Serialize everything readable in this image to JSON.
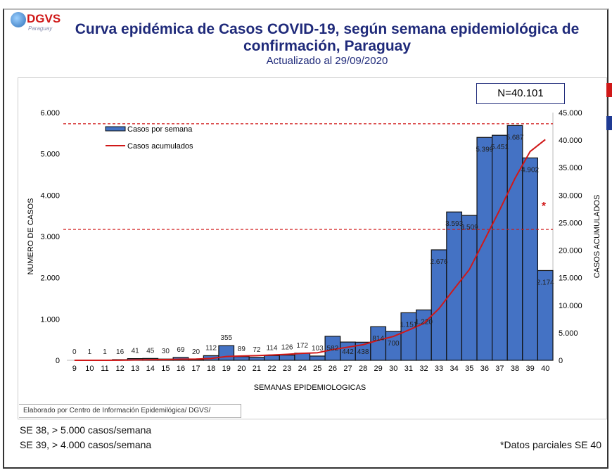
{
  "header": {
    "logo_text": "DGVS",
    "logo_subtext": "Paraguay",
    "title": "Curva epidémica de Casos COVID-19, según semana epidemiológica de confirmación, Paraguay",
    "subtitle": "Actualizado al 29/09/2020"
  },
  "total_box": "N=40.101",
  "credit": "Elaborado por Centro de Información Epidemilógica/ DGVS/",
  "notes": [
    "SE 38, > 5.000 casos/semana",
    "SE 39, > 4.000 casos/semana"
  ],
  "partial_note": "*Datos parciales SE 40",
  "chart_data": {
    "type": "bar",
    "xlabel": "SEMANAS EPIDEMIOLOGICAS",
    "ylabel": "NUMERO DE CASOS",
    "y2label": "CASOS  ACUMULADOS",
    "ylim": [
      0,
      6000
    ],
    "y2lim": [
      0,
      45000
    ],
    "yticks": [
      "0",
      "1.000",
      "2.000",
      "3.000",
      "4.000",
      "5.000",
      "6.000"
    ],
    "y2ticks": [
      "0",
      "5.000",
      "10.000",
      "15.000",
      "20.000",
      "25.000",
      "30.000",
      "35.000",
      "40.000",
      "45.000"
    ],
    "categories": [
      "9",
      "10",
      "11",
      "12",
      "13",
      "14",
      "15",
      "16",
      "17",
      "18",
      "19",
      "20",
      "21",
      "22",
      "23",
      "24",
      "25",
      "26",
      "27",
      "28",
      "29",
      "30",
      "31",
      "32",
      "33",
      "34",
      "35",
      "36",
      "37",
      "38",
      "39",
      "40"
    ],
    "series": [
      {
        "name": "Casos por semana",
        "type": "bar",
        "axis": "left",
        "color": "#4472c4",
        "values": [
          0,
          1,
          1,
          16,
          41,
          45,
          30,
          69,
          20,
          112,
          355,
          89,
          72,
          114,
          126,
          172,
          103,
          582,
          442,
          438,
          814,
          700,
          1151,
          1220,
          2676,
          3593,
          3509,
          5399,
          5451,
          5687,
          4902,
          2174
        ],
        "labels": [
          "0",
          "1",
          "1",
          "16",
          "41",
          "45",
          "30",
          "69",
          "20",
          "112",
          "355",
          "89",
          "72",
          "114",
          "126",
          "172",
          "103",
          "582",
          "442",
          "438",
          "814",
          "700",
          "1.151",
          "1.220",
          "2.676",
          "3.593",
          "3.509",
          "5.399",
          "5.451",
          "5.687",
          "4.902",
          "2.174"
        ]
      },
      {
        "name": "Casos acumulados",
        "type": "line",
        "axis": "right",
        "color": "#d01818",
        "values": [
          0,
          1,
          2,
          18,
          59,
          104,
          134,
          203,
          223,
          335,
          690,
          779,
          851,
          965,
          1091,
          1263,
          1366,
          1948,
          2390,
          2828,
          3642,
          4342,
          5493,
          6713,
          9389,
          12982,
          16491,
          21890,
          27341,
          33028,
          37930,
          40101
        ]
      }
    ],
    "reference_lines": [
      {
        "axis": "left",
        "value": 5730,
        "style": "dashed",
        "color": "#d01818"
      },
      {
        "axis": "left",
        "value": 3170,
        "style": "dashed",
        "color": "#d01818"
      }
    ],
    "annotation": "*",
    "legend": "top-left",
    "grid": false
  }
}
